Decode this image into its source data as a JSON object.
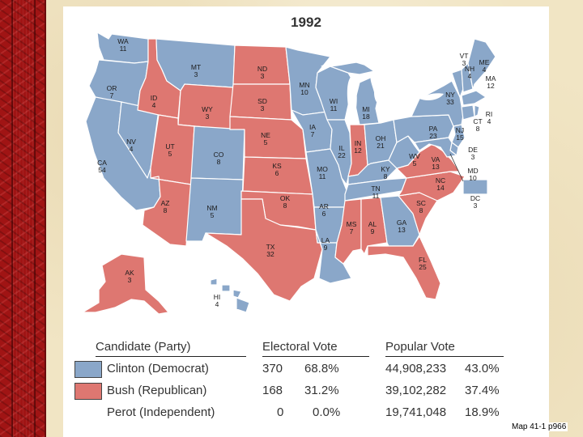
{
  "title": "1992",
  "source_note": "Map 41-1 p966",
  "colors": {
    "democrat": "#8aa7c9",
    "republican": "#de7771",
    "border": "#ffffff",
    "water": "#ffffff"
  },
  "legend": {
    "headers": {
      "candidate": "Candidate (Party)",
      "electoral": "Electoral Vote",
      "popular": "Popular Vote"
    },
    "rows": [
      {
        "candidate": "Clinton (Democrat)",
        "party": "democrat",
        "electoral": "370",
        "electoral_pct": "68.8%",
        "popular": "44,908,233",
        "popular_pct": "43.0%"
      },
      {
        "candidate": "Bush (Republican)",
        "party": "republican",
        "electoral": "168",
        "electoral_pct": "31.2%",
        "popular": "39,102,282",
        "popular_pct": "37.4%"
      },
      {
        "candidate": "Perot (Independent)",
        "party": "none",
        "electoral": "0",
        "electoral_pct": "0.0%",
        "popular": "19,741,048",
        "popular_pct": "18.9%"
      }
    ]
  },
  "states": [
    {
      "abbr": "WA",
      "votes": "11",
      "party": "democrat"
    },
    {
      "abbr": "OR",
      "votes": "7",
      "party": "democrat"
    },
    {
      "abbr": "CA",
      "votes": "54",
      "party": "democrat"
    },
    {
      "abbr": "NV",
      "votes": "4",
      "party": "democrat"
    },
    {
      "abbr": "ID",
      "votes": "4",
      "party": "republican"
    },
    {
      "abbr": "MT",
      "votes": "3",
      "party": "democrat"
    },
    {
      "abbr": "WY",
      "votes": "3",
      "party": "republican"
    },
    {
      "abbr": "UT",
      "votes": "5",
      "party": "republican"
    },
    {
      "abbr": "AZ",
      "votes": "8",
      "party": "republican"
    },
    {
      "abbr": "CO",
      "votes": "8",
      "party": "democrat"
    },
    {
      "abbr": "NM",
      "votes": "5",
      "party": "democrat"
    },
    {
      "abbr": "ND",
      "votes": "3",
      "party": "republican"
    },
    {
      "abbr": "SD",
      "votes": "3",
      "party": "republican"
    },
    {
      "abbr": "NE",
      "votes": "5",
      "party": "republican"
    },
    {
      "abbr": "KS",
      "votes": "6",
      "party": "republican"
    },
    {
      "abbr": "OK",
      "votes": "8",
      "party": "republican"
    },
    {
      "abbr": "TX",
      "votes": "32",
      "party": "republican"
    },
    {
      "abbr": "MN",
      "votes": "10",
      "party": "democrat"
    },
    {
      "abbr": "IA",
      "votes": "7",
      "party": "democrat"
    },
    {
      "abbr": "MO",
      "votes": "11",
      "party": "democrat"
    },
    {
      "abbr": "AR",
      "votes": "6",
      "party": "democrat"
    },
    {
      "abbr": "LA",
      "votes": "9",
      "party": "democrat"
    },
    {
      "abbr": "WI",
      "votes": "11",
      "party": "democrat"
    },
    {
      "abbr": "IL",
      "votes": "22",
      "party": "democrat"
    },
    {
      "abbr": "MI",
      "votes": "18",
      "party": "democrat"
    },
    {
      "abbr": "IN",
      "votes": "12",
      "party": "republican"
    },
    {
      "abbr": "OH",
      "votes": "21",
      "party": "democrat"
    },
    {
      "abbr": "KY",
      "votes": "8",
      "party": "democrat"
    },
    {
      "abbr": "TN",
      "votes": "11",
      "party": "democrat"
    },
    {
      "abbr": "MS",
      "votes": "7",
      "party": "republican"
    },
    {
      "abbr": "AL",
      "votes": "9",
      "party": "republican"
    },
    {
      "abbr": "GA",
      "votes": "13",
      "party": "democrat"
    },
    {
      "abbr": "FL",
      "votes": "25",
      "party": "republican"
    },
    {
      "abbr": "SC",
      "votes": "8",
      "party": "republican"
    },
    {
      "abbr": "NC",
      "votes": "14",
      "party": "republican"
    },
    {
      "abbr": "VA",
      "votes": "13",
      "party": "republican"
    },
    {
      "abbr": "WV",
      "votes": "5",
      "party": "democrat"
    },
    {
      "abbr": "PA",
      "votes": "23",
      "party": "democrat"
    },
    {
      "abbr": "NY",
      "votes": "33",
      "party": "democrat"
    },
    {
      "abbr": "VT",
      "votes": "3",
      "party": "democrat"
    },
    {
      "abbr": "NH",
      "votes": "4",
      "party": "democrat"
    },
    {
      "abbr": "ME",
      "votes": "4",
      "party": "democrat"
    },
    {
      "abbr": "MA",
      "votes": "12",
      "party": "democrat"
    },
    {
      "abbr": "RI",
      "votes": "4",
      "party": "democrat"
    },
    {
      "abbr": "CT",
      "votes": "8",
      "party": "democrat"
    },
    {
      "abbr": "NJ",
      "votes": "15",
      "party": "democrat"
    },
    {
      "abbr": "DE",
      "votes": "3",
      "party": "democrat"
    },
    {
      "abbr": "MD",
      "votes": "10",
      "party": "democrat"
    },
    {
      "abbr": "DC",
      "votes": "3",
      "party": "democrat"
    },
    {
      "abbr": "AK",
      "votes": "3",
      "party": "republican"
    },
    {
      "abbr": "HI",
      "votes": "4",
      "party": "democrat"
    }
  ]
}
